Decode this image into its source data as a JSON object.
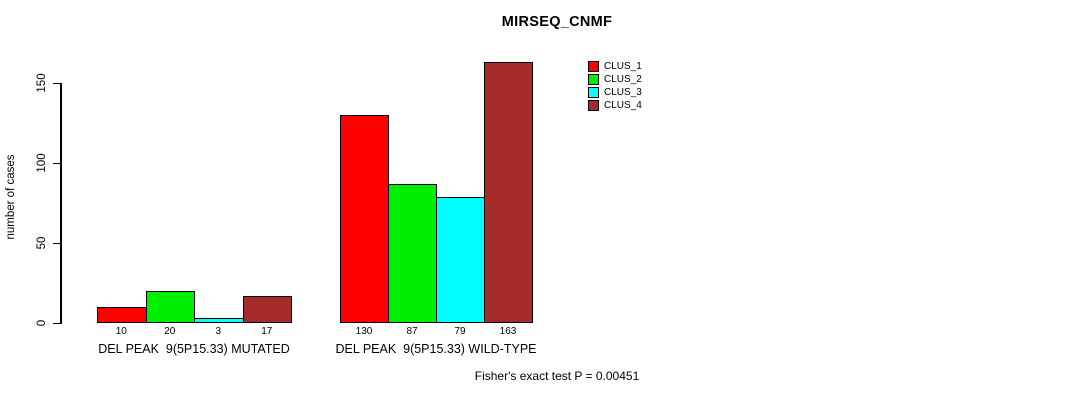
{
  "chart_data": {
    "type": "bar",
    "title": "MIRSEQ_CNMF",
    "ylabel": "number of cases",
    "annotation": "Fisher's exact test P = 0.00451",
    "ylim": [
      0,
      170
    ],
    "yticks": [
      0,
      50,
      100,
      150
    ],
    "grid": false,
    "legend_position": "top-right",
    "categories": [
      "DEL PEAK  9(5P15.33) MUTATED",
      "DEL PEAK  9(5P15.33) WILD-TYPE"
    ],
    "series": [
      {
        "name": "CLUS_1",
        "color": "#FF0000",
        "values": [
          10,
          130
        ]
      },
      {
        "name": "CLUS_2",
        "color": "#00EE00",
        "values": [
          20,
          87
        ]
      },
      {
        "name": "CLUS_3",
        "color": "#00FFFF",
        "values": [
          3,
          79
        ]
      },
      {
        "name": "CLUS_4",
        "color": "#A52A2A",
        "values": [
          17,
          163
        ]
      }
    ]
  }
}
